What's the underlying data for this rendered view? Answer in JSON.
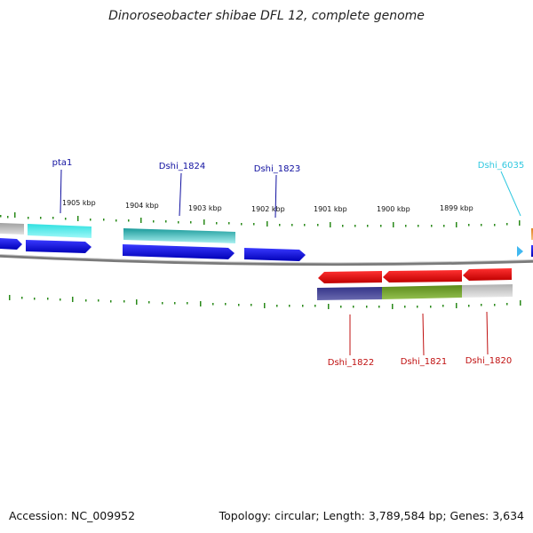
{
  "title": "Dinoroseobacter shibae DFL 12, complete genome",
  "footer": {
    "accession": "Accession: NC_009952",
    "summary": "Topology: circular; Length: 3,789,584 bp; Genes: 3,634"
  },
  "colors": {
    "backbone": "#808080",
    "tick": "#3a8a1a",
    "forward_cds": "#1010e0",
    "reverse_cds": "#e81010",
    "forward_label": "#1010a0",
    "reverse_label": "#c01010",
    "cyan_label": "#30c8e0"
  },
  "scale_labels": [
    "1905 kbp",
    "1904 kbp",
    "1903 kbp",
    "1902 kbp",
    "1901 kbp",
    "1900 kbp",
    "1899 kbp"
  ],
  "gene_labels": {
    "top": [
      "pta1",
      "Dshi_1824",
      "Dshi_1823",
      "Dshi_6035"
    ],
    "bottom": [
      "Dshi_1822",
      "Dshi_1821",
      "Dshi_1820"
    ]
  }
}
